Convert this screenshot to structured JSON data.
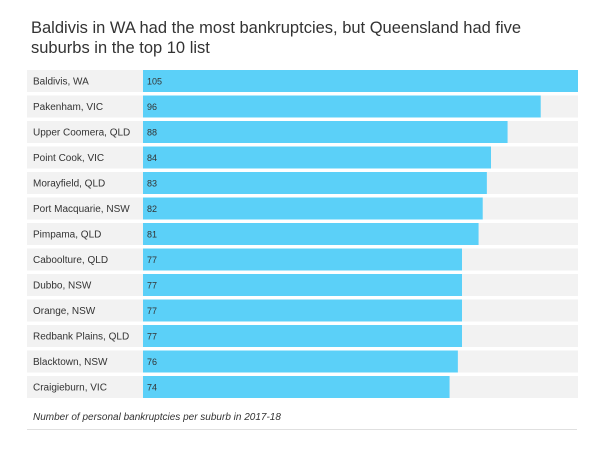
{
  "chart_data": {
    "type": "bar",
    "orientation": "horizontal",
    "title": "Baldivis in WA had the most bankruptcies, but Queensland had five suburbs in the top 10 list",
    "caption": "Number of personal bankruptcies per suburb in 2017-18",
    "categories": [
      "Baldivis, WA",
      "Pakenham, VIC",
      "Upper Coomera, QLD",
      "Point Cook, VIC",
      "Morayfield, QLD",
      "Port Macquarie, NSW",
      "Pimpama, QLD",
      "Caboolture, QLD",
      "Dubbo, NSW",
      "Orange, NSW",
      "Redbank Plains, QLD",
      "Blacktown, NSW",
      "Craigieburn, VIC"
    ],
    "values": [
      105,
      96,
      88,
      84,
      83,
      82,
      81,
      77,
      77,
      77,
      77,
      76,
      74
    ],
    "xlim": [
      0,
      105
    ],
    "bar_color": "#5bd0f8",
    "row_color": "#f2f2f2",
    "grid": false
  }
}
